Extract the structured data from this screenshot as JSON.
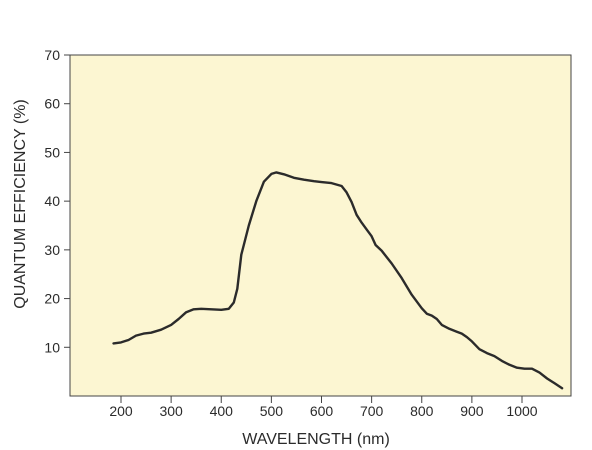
{
  "chart_data": {
    "type": "line",
    "title": "",
    "xlabel": "WAVELENGTH (nm)",
    "ylabel": "QUANTUM EFFICIENCY (%)",
    "xlim": [
      100,
      1100
    ],
    "ylim": [
      0,
      70
    ],
    "x_ticks": [
      200,
      300,
      400,
      500,
      600,
      700,
      800,
      900,
      1000
    ],
    "y_ticks": [
      10,
      20,
      30,
      40,
      50,
      60,
      70
    ],
    "grid": false,
    "legend": "none",
    "colors": {
      "plot_background": "#fcf6d2",
      "line": "#2b2b2b",
      "axis": "#444444"
    },
    "series": [
      {
        "x": [
          185,
          200,
          215,
          230,
          245,
          260,
          280,
          300,
          315,
          330,
          345,
          360,
          380,
          400,
          415,
          425,
          432,
          440,
          445,
          455,
          470,
          485,
          500,
          510,
          525,
          545,
          565,
          585,
          600,
          620,
          640,
          650,
          660,
          670,
          680,
          690,
          700,
          708,
          720,
          740,
          760,
          780,
          800,
          810,
          820,
          830,
          840,
          855,
          870,
          880,
          890,
          900,
          915,
          930,
          945,
          960,
          975,
          990,
          1005,
          1020,
          1035,
          1050,
          1065,
          1080
        ],
        "y": [
          10.8,
          11.0,
          11.5,
          12.4,
          12.8,
          13.0,
          13.6,
          14.6,
          15.8,
          17.2,
          17.8,
          17.9,
          17.8,
          17.7,
          17.9,
          19.2,
          22.0,
          29.0,
          31.0,
          35.0,
          40.0,
          44.0,
          45.6,
          45.9,
          45.5,
          44.8,
          44.4,
          44.1,
          43.9,
          43.7,
          43.1,
          41.8,
          39.8,
          37.2,
          35.6,
          34.2,
          32.8,
          31.0,
          29.8,
          27.2,
          24.2,
          20.8,
          18.0,
          16.9,
          16.5,
          15.8,
          14.6,
          13.8,
          13.2,
          12.8,
          12.1,
          11.2,
          9.6,
          8.8,
          8.2,
          7.2,
          6.4,
          5.8,
          5.6,
          5.6,
          4.8,
          3.6,
          2.6,
          1.6
        ]
      }
    ]
  }
}
